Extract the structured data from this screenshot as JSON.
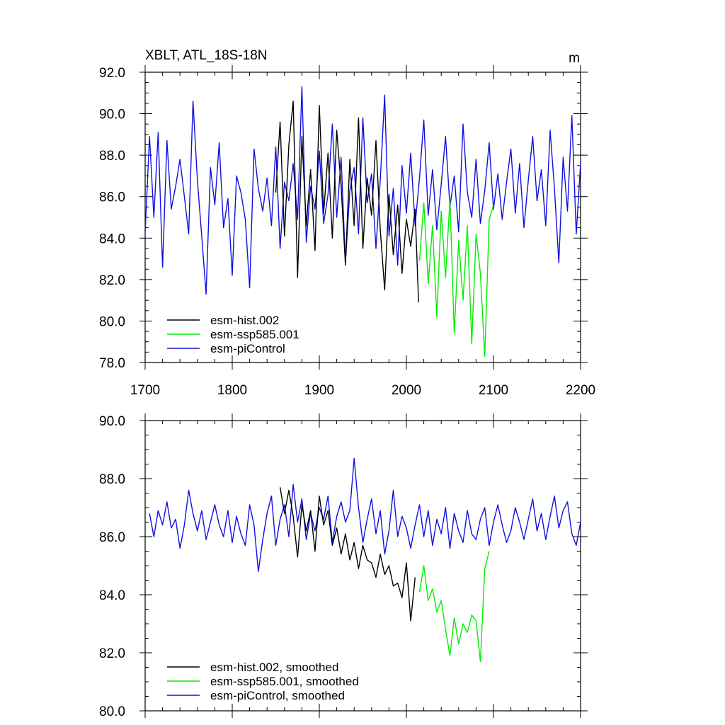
{
  "colors": {
    "esm-hist.002": "#000000",
    "esm-ssp585.001": "#00ee00",
    "esm-piControl": "#1010e0"
  },
  "chart_data": [
    {
      "type": "line",
      "title": "XBLT, ATL_18S-18N",
      "units_label": "m",
      "xlim": [
        1700,
        2200
      ],
      "ylim": [
        78,
        92
      ],
      "xticks": [
        "1700",
        "1800",
        "1900",
        "2000",
        "2100",
        "2200"
      ],
      "yticks": [
        "78.0",
        "80.0",
        "82.0",
        "84.0",
        "86.0",
        "88.0",
        "90.0",
        "92.0"
      ],
      "legend": [
        "esm-hist.002",
        "esm-ssp585.001",
        "esm-piControl"
      ],
      "legend_position": "bottom-left",
      "series": [
        {
          "name": "esm-piControl",
          "color": "#1010e0",
          "x": [
            1700,
            1705,
            1710,
            1715,
            1720,
            1725,
            1730,
            1735,
            1740,
            1745,
            1750,
            1755,
            1760,
            1765,
            1770,
            1775,
            1780,
            1785,
            1790,
            1795,
            1800,
            1805,
            1810,
            1815,
            1820,
            1825,
            1830,
            1835,
            1840,
            1845,
            1850,
            1855,
            1860,
            1865,
            1870,
            1875,
            1880,
            1885,
            1890,
            1895,
            1900,
            1905,
            1910,
            1915,
            1920,
            1925,
            1930,
            1935,
            1940,
            1945,
            1950,
            1955,
            1960,
            1965,
            1970,
            1975,
            1980,
            1985,
            1990,
            1995,
            2000,
            2005,
            2010,
            2015,
            2020,
            2025,
            2030,
            2035,
            2040,
            2045,
            2050,
            2055,
            2060,
            2065,
            2070,
            2075,
            2080,
            2085,
            2090,
            2095,
            2100,
            2105,
            2110,
            2115,
            2120,
            2125,
            2130,
            2135,
            2140,
            2145,
            2150,
            2155,
            2160,
            2165,
            2170,
            2175,
            2180,
            2185,
            2190,
            2195,
            2200
          ],
          "y": [
            84.3,
            88.9,
            85.0,
            89.1,
            82.6,
            88.7,
            85.4,
            86.5,
            87.8,
            86.0,
            84.2,
            90.6,
            86.8,
            84.1,
            81.3,
            87.4,
            85.6,
            88.6,
            84.5,
            85.9,
            82.2,
            87.0,
            86.2,
            84.9,
            81.6,
            88.3,
            86.4,
            85.3,
            86.9,
            84.6,
            88.4,
            83.5,
            86.7,
            85.8,
            87.6,
            84.9,
            91.3,
            83.8,
            86.5,
            85.4,
            88.2,
            84.7,
            86.1,
            89.5,
            85.0,
            87.9,
            82.8,
            86.3,
            87.4,
            84.2,
            89.8,
            85.7,
            87.1,
            83.5,
            86.8,
            90.9,
            84.1,
            86.4,
            82.7,
            87.5,
            85.2,
            88.1,
            84.6,
            86.9,
            89.7,
            85.1,
            87.3,
            84.4,
            86.6,
            88.9,
            85.5,
            87.0,
            84.3,
            89.5,
            86.2,
            85.0,
            87.8,
            84.7,
            86.3,
            88.6,
            85.4,
            87.1,
            84.9,
            86.7,
            88.3,
            85.2,
            87.6,
            84.5,
            86.8,
            88.9,
            85.8,
            87.3,
            84.6,
            89.2,
            86.4,
            82.8,
            87.9,
            85.3,
            89.9,
            84.2,
            87.6
          ]
        },
        {
          "name": "esm-hist.002",
          "color": "#000000",
          "x": [
            1850,
            1855,
            1860,
            1865,
            1870,
            1875,
            1880,
            1885,
            1890,
            1895,
            1900,
            1905,
            1910,
            1915,
            1920,
            1925,
            1930,
            1935,
            1940,
            1945,
            1950,
            1955,
            1960,
            1965,
            1970,
            1975,
            1980,
            1985,
            1990,
            1995,
            2000,
            2005,
            2010,
            2014
          ],
          "y": [
            86.2,
            89.6,
            84.1,
            88.5,
            90.6,
            82.1,
            88.9,
            84.6,
            87.3,
            83.4,
            90.4,
            85.2,
            88.1,
            84.0,
            89.2,
            86.5,
            82.7,
            87.8,
            84.6,
            89.8,
            83.5,
            86.9,
            85.1,
            88.7,
            84.4,
            81.5,
            86.1,
            83.2,
            85.6,
            82.3,
            84.9,
            83.6,
            85.4,
            80.9
          ]
        },
        {
          "name": "esm-ssp585.001",
          "color": "#00ee00",
          "x": [
            2015,
            2020,
            2025,
            2030,
            2035,
            2040,
            2045,
            2050,
            2055,
            2060,
            2065,
            2070,
            2075,
            2080,
            2085,
            2090,
            2095,
            2100
          ],
          "y": [
            82.9,
            85.7,
            81.8,
            84.6,
            80.2,
            85.3,
            82.1,
            85.9,
            79.4,
            83.9,
            81.0,
            84.6,
            78.9,
            84.2,
            82.3,
            78.3,
            84.9,
            85.6
          ]
        }
      ]
    },
    {
      "type": "line",
      "title": "",
      "xlim": [
        1700,
        2200
      ],
      "ylim": [
        80,
        90
      ],
      "yticks": [
        "80.0",
        "82.0",
        "84.0",
        "86.0",
        "88.0",
        "90.0"
      ],
      "legend": [
        "esm-hist.002, smoothed",
        "esm-ssp585.001, smoothed",
        "esm-piControl, smoothed"
      ],
      "legend_position": "bottom-left",
      "series": [
        {
          "name": "esm-piControl, smoothed",
          "color": "#1010e0",
          "x": [
            1705,
            1710,
            1715,
            1720,
            1725,
            1730,
            1735,
            1740,
            1745,
            1750,
            1755,
            1760,
            1765,
            1770,
            1775,
            1780,
            1785,
            1790,
            1795,
            1800,
            1805,
            1810,
            1815,
            1820,
            1825,
            1830,
            1835,
            1840,
            1845,
            1850,
            1855,
            1860,
            1865,
            1870,
            1875,
            1880,
            1885,
            1890,
            1895,
            1900,
            1905,
            1910,
            1915,
            1920,
            1925,
            1930,
            1935,
            1940,
            1945,
            1950,
            1955,
            1960,
            1965,
            1970,
            1975,
            1980,
            1985,
            1990,
            1995,
            2000,
            2005,
            2010,
            2015,
            2020,
            2025,
            2030,
            2035,
            2040,
            2045,
            2050,
            2055,
            2060,
            2065,
            2070,
            2075,
            2080,
            2085,
            2090,
            2095,
            2100,
            2105,
            2110,
            2115,
            2120,
            2125,
            2130,
            2135,
            2140,
            2145,
            2150,
            2155,
            2160,
            2165,
            2170,
            2175,
            2180,
            2185,
            2190,
            2195,
            2200
          ],
          "y": [
            86.8,
            86.0,
            86.9,
            86.4,
            87.2,
            86.3,
            86.6,
            85.6,
            86.4,
            87.6,
            86.8,
            86.2,
            86.9,
            85.9,
            86.5,
            87.1,
            86.4,
            86.0,
            86.9,
            85.8,
            86.7,
            86.1,
            85.7,
            87.1,
            86.4,
            84.8,
            85.9,
            86.8,
            87.4,
            85.7,
            86.6,
            87.1,
            86.0,
            87.8,
            86.5,
            87.3,
            85.9,
            86.8,
            86.2,
            87.0,
            86.6,
            87.4,
            85.8,
            86.7,
            87.2,
            86.5,
            86.9,
            88.7,
            87.0,
            85.8,
            86.6,
            87.3,
            86.1,
            86.9,
            85.4,
            86.2,
            87.6,
            86.0,
            86.7,
            86.3,
            85.6,
            86.4,
            87.1,
            86.0,
            86.9,
            85.7,
            86.6,
            86.1,
            87.0,
            85.6,
            86.8,
            86.2,
            85.8,
            86.9,
            86.1,
            85.9,
            86.6,
            87.0,
            85.7,
            86.5,
            87.1,
            86.4,
            85.8,
            86.2,
            87.0,
            86.5,
            85.9,
            86.6,
            87.3,
            86.2,
            86.8,
            85.9,
            86.7,
            87.4,
            86.3,
            86.9,
            87.2,
            86.1,
            85.7,
            86.5
          ]
        },
        {
          "name": "esm-hist.002, smoothed",
          "color": "#000000",
          "x": [
            1855,
            1860,
            1865,
            1870,
            1875,
            1880,
            1885,
            1890,
            1895,
            1900,
            1905,
            1910,
            1915,
            1920,
            1925,
            1930,
            1935,
            1940,
            1945,
            1950,
            1955,
            1960,
            1965,
            1970,
            1975,
            1980,
            1985,
            1990,
            1995,
            2000,
            2005,
            2010
          ],
          "y": [
            87.7,
            86.8,
            87.6,
            86.7,
            85.3,
            87.1,
            86.2,
            86.9,
            85.5,
            87.4,
            86.4,
            86.9,
            85.7,
            86.3,
            85.4,
            86.1,
            85.2,
            85.8,
            84.9,
            85.7,
            85.2,
            85.1,
            84.6,
            85.4,
            84.7,
            85.0,
            84.3,
            84.4,
            83.9,
            85.1,
            83.1,
            84.6
          ]
        },
        {
          "name": "esm-ssp585.001, smoothed",
          "color": "#00ee00",
          "x": [
            2015,
            2020,
            2025,
            2030,
            2035,
            2040,
            2045,
            2050,
            2055,
            2060,
            2065,
            2070,
            2075,
            2080,
            2085,
            2090,
            2095
          ],
          "y": [
            84.1,
            85.0,
            83.8,
            84.2,
            83.4,
            83.8,
            82.8,
            81.9,
            83.2,
            82.3,
            83.0,
            82.7,
            83.3,
            83.1,
            81.7,
            84.9,
            85.5
          ]
        }
      ]
    }
  ]
}
